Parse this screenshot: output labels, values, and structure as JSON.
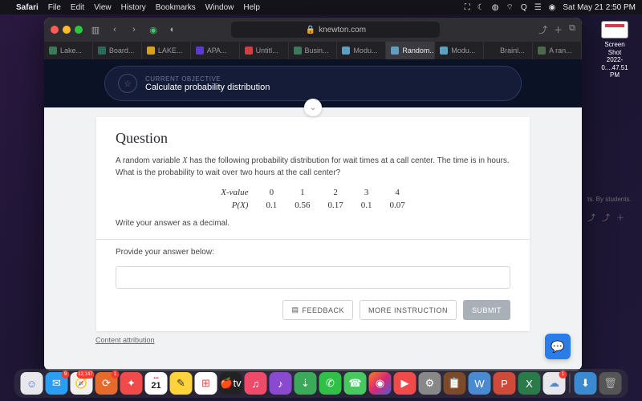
{
  "menubar": {
    "app": "Safari",
    "items": [
      "File",
      "Edit",
      "View",
      "History",
      "Bookmarks",
      "Window",
      "Help"
    ],
    "clock": "Sat May 21  2:50 PM"
  },
  "browser": {
    "url_host": "knewton.com",
    "tabs": [
      {
        "label": "Lake...",
        "color": "#3a7a5a"
      },
      {
        "label": "Board...",
        "color": "#2a6a5a"
      },
      {
        "label": "LAKE...",
        "color": "#d9a020"
      },
      {
        "label": "APA...",
        "color": "#5a3ad0"
      },
      {
        "label": "Untitl...",
        "color": "#d04040"
      },
      {
        "label": "Busin...",
        "color": "#3a7a5a"
      },
      {
        "label": "Modu...",
        "color": "#5aa0c0"
      },
      {
        "label": "Random...",
        "color": "#5aa0c0",
        "active": true
      },
      {
        "label": "Modu...",
        "color": "#5aa0c0"
      },
      {
        "label": "Brainl...",
        "color": "#222"
      },
      {
        "label": "A ran...",
        "color": "#4a6a4a"
      }
    ]
  },
  "objective": {
    "label": "CURRENT OBJECTIVE",
    "text": "Calculate probability distribution"
  },
  "question": {
    "heading": "Question",
    "prompt_1": "A random variable ",
    "prompt_var": "X",
    "prompt_2": " has the following probability distribution for wait times at a call center. The time is in hours. What is the probability to wait over two hours at the call center?",
    "row1_label": "X-value",
    "row2_label": "P(X)",
    "xvals": [
      "0",
      "1",
      "2",
      "3",
      "4"
    ],
    "pvals": [
      "0.1",
      "0.56",
      "0.17",
      "0.1",
      "0.07"
    ],
    "instruction": "Write your answer as a decimal.",
    "provide": "Provide your answer below:",
    "feedback_btn": "FEEDBACK",
    "more_btn": "MORE INSTRUCTION",
    "submit_btn": "SUBMIT",
    "attribution": "Content attribution"
  },
  "thumbnail": {
    "line1": "Screen Shot",
    "line2": "2022-0....47.51 PM"
  },
  "peek": {
    "text": "ts. By students."
  },
  "dock": {
    "apps": [
      {
        "bg": "#e8e8ec",
        "glyph": "☺",
        "fg": "#4a78d0"
      },
      {
        "bg": "#2a9df4",
        "glyph": "✉",
        "fg": "#fff",
        "badge": "9"
      },
      {
        "bg": "#f0f0f0",
        "glyph": "🧭",
        "fg": "#fff",
        "badge": "12,147"
      },
      {
        "bg": "#e86a2a",
        "glyph": "⟳",
        "fg": "#fff",
        "badge": "1"
      },
      {
        "bg": "#f04a4a",
        "glyph": "✦",
        "fg": "#fff"
      },
      {
        "bg": "#fff",
        "glyph": "",
        "cal": "21"
      },
      {
        "bg": "#ffd43a",
        "glyph": "✎",
        "fg": "#333"
      },
      {
        "bg": "#fff",
        "glyph": "⊞",
        "fg": "#e84a4a"
      },
      {
        "bg": "#222",
        "glyph": "🍎tv",
        "fg": "#fff"
      },
      {
        "bg": "#f04a6a",
        "glyph": "♫",
        "fg": "#fff"
      },
      {
        "bg": "#8a4ad0",
        "glyph": "♪",
        "fg": "#fff"
      },
      {
        "bg": "#3aaa5a",
        "glyph": "⇣",
        "fg": "#fff"
      },
      {
        "bg": "#30c048",
        "glyph": "✆",
        "fg": "#fff"
      },
      {
        "bg": "#4ac860",
        "glyph": "☎",
        "fg": "#fff"
      },
      {
        "bg": "linear-gradient(135deg,#fa7e1e,#d62976,#4f5bd5)",
        "glyph": "◉",
        "fg": "#fff"
      },
      {
        "bg": "#f04a4a",
        "glyph": "▶",
        "fg": "#fff"
      },
      {
        "bg": "#888",
        "glyph": "⚙",
        "fg": "#fff"
      },
      {
        "bg": "#7a4a2a",
        "glyph": "📋",
        "fg": "#fff"
      },
      {
        "bg": "#4a8ad0",
        "glyph": "W",
        "fg": "#fff"
      },
      {
        "bg": "#d04a3a",
        "glyph": "P",
        "fg": "#fff"
      },
      {
        "bg": "#2a7a4a",
        "glyph": "X",
        "fg": "#fff"
      },
      {
        "bg": "#e8e8ec",
        "glyph": "☁",
        "fg": "#4a8ad0",
        "badge": "1"
      }
    ],
    "right": [
      {
        "bg": "#3a8ad0",
        "glyph": "⬇",
        "fg": "#fff"
      },
      {
        "bg": "#555",
        "glyph": "🗑",
        "fg": "#aaa"
      }
    ]
  }
}
